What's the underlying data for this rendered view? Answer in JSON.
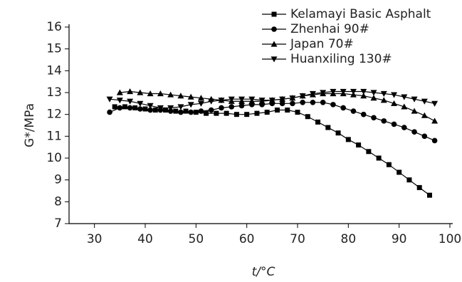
{
  "chart_data": {
    "type": "line",
    "x_label": "t/°C",
    "y_label": "G*/MPa",
    "xlim": [
      25,
      100
    ],
    "xticks": [
      30,
      40,
      50,
      60,
      70,
      80,
      90,
      100
    ],
    "ylim": [
      7,
      16
    ],
    "yticks": [
      7,
      8,
      9,
      10,
      11,
      12,
      13,
      14,
      15,
      16
    ],
    "legend": "upper right",
    "series": [
      {
        "name": "Kelamayi Basic Asphalt",
        "color": "#000000",
        "marker": "square",
        "x": [
          34,
          36,
          38,
          40,
          42,
          44,
          46,
          48,
          50,
          52,
          54,
          56,
          58,
          60,
          62,
          64,
          66,
          68,
          70,
          72,
          74,
          76,
          78,
          80,
          82,
          84,
          86,
          88,
          90,
          92,
          94,
          96
        ],
        "values": [
          12.35,
          12.35,
          12.3,
          12.25,
          12.2,
          12.2,
          12.15,
          12.15,
          12.1,
          12.05,
          12.05,
          12.05,
          12.0,
          12.0,
          12.05,
          12.1,
          12.2,
          12.2,
          12.1,
          11.9,
          11.65,
          11.4,
          11.15,
          10.85,
          10.6,
          10.3,
          10.0,
          9.7,
          9.35,
          9.0,
          8.65,
          8.3
        ]
      },
      {
        "name": "Zhenhai 90#",
        "color": "#000000",
        "marker": "circle",
        "x": [
          33,
          35,
          37,
          39,
          41,
          43,
          45,
          47,
          49,
          51,
          53,
          55,
          57,
          59,
          61,
          63,
          65,
          67,
          69,
          71,
          73,
          75,
          77,
          79,
          81,
          83,
          85,
          87,
          89,
          91,
          93,
          95,
          97
        ],
        "values": [
          12.1,
          12.3,
          12.3,
          12.25,
          12.2,
          12.2,
          12.15,
          12.1,
          12.1,
          12.15,
          12.2,
          12.3,
          12.35,
          12.4,
          12.45,
          12.45,
          12.5,
          12.5,
          12.5,
          12.55,
          12.55,
          12.55,
          12.45,
          12.3,
          12.15,
          12.0,
          11.85,
          11.7,
          11.55,
          11.4,
          11.2,
          11.0,
          10.8
        ]
      },
      {
        "name": "Japan 70#",
        "color": "#000000",
        "marker": "triangle-up",
        "x": [
          35,
          37,
          39,
          41,
          43,
          45,
          47,
          49,
          51,
          53,
          55,
          57,
          59,
          61,
          63,
          65,
          67,
          69,
          71,
          73,
          75,
          77,
          79,
          81,
          83,
          85,
          87,
          89,
          91,
          93,
          95,
          97
        ],
        "values": [
          13.0,
          13.05,
          13.0,
          12.95,
          12.95,
          12.9,
          12.85,
          12.8,
          12.75,
          12.7,
          12.65,
          12.6,
          12.6,
          12.6,
          12.6,
          12.65,
          12.7,
          12.75,
          12.85,
          12.9,
          12.95,
          12.95,
          12.95,
          12.9,
          12.85,
          12.75,
          12.65,
          12.5,
          12.35,
          12.15,
          11.95,
          11.7
        ]
      },
      {
        "name": "Huanxiling 130#",
        "color": "#000000",
        "marker": "triangle-down",
        "x": [
          33,
          35,
          37,
          39,
          41,
          43,
          45,
          47,
          49,
          51,
          53,
          55,
          57,
          59,
          61,
          63,
          65,
          67,
          69,
          71,
          73,
          75,
          77,
          79,
          81,
          83,
          85,
          87,
          89,
          91,
          93,
          95,
          97
        ],
        "values": [
          12.7,
          12.65,
          12.6,
          12.5,
          12.4,
          12.3,
          12.3,
          12.35,
          12.45,
          12.5,
          12.6,
          12.65,
          12.7,
          12.7,
          12.7,
          12.65,
          12.65,
          12.7,
          12.75,
          12.85,
          12.95,
          13.0,
          13.05,
          13.05,
          13.05,
          13.05,
          13.0,
          12.95,
          12.9,
          12.8,
          12.7,
          12.6,
          12.5
        ]
      }
    ]
  }
}
